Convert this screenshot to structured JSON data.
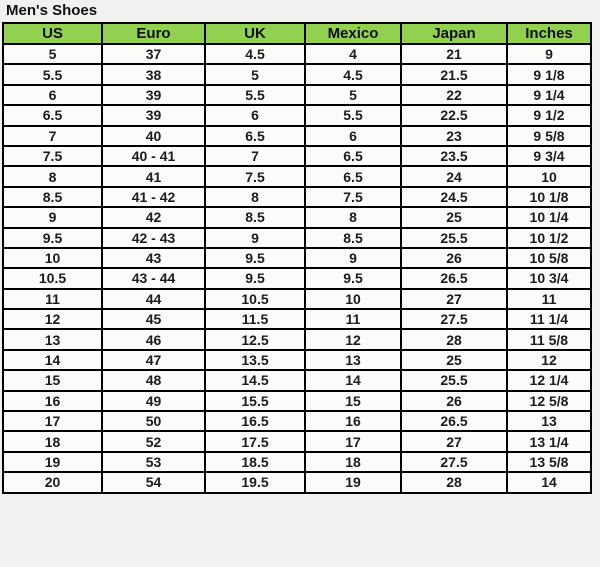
{
  "page": {
    "title": "Men's Shoes"
  },
  "colors": {
    "page_bg": "#f1f1ef",
    "cell_bg": "#fbfbfa",
    "header_bg": "#92d050",
    "border": "#000000",
    "text": "#1c1c1c"
  },
  "table": {
    "columns": [
      "US",
      "Euro",
      "UK",
      "Mexico",
      "Japan",
      "Inches"
    ],
    "rows": [
      [
        "5",
        "37",
        "4.5",
        "4",
        "21",
        "9"
      ],
      [
        "5.5",
        "38",
        "5",
        "4.5",
        "21.5",
        "9 1/8"
      ],
      [
        "6",
        "39",
        "5.5",
        "5",
        "22",
        "9 1/4"
      ],
      [
        "6.5",
        "39",
        "6",
        "5.5",
        "22.5",
        "9 1/2"
      ],
      [
        "7",
        "40",
        "6.5",
        "6",
        "23",
        "9 5/8"
      ],
      [
        "7.5",
        "40 - 41",
        "7",
        "6.5",
        "23.5",
        "9 3/4"
      ],
      [
        "8",
        "41",
        "7.5",
        "6.5",
        "24",
        "10"
      ],
      [
        "8.5",
        "41 - 42",
        "8",
        "7.5",
        "24.5",
        "10 1/8"
      ],
      [
        "9",
        "42",
        "8.5",
        "8",
        "25",
        "10 1/4"
      ],
      [
        "9.5",
        "42 - 43",
        "9",
        "8.5",
        "25.5",
        "10 1/2"
      ],
      [
        "10",
        "43",
        "9.5",
        "9",
        "26",
        "10 5/8"
      ],
      [
        "10.5",
        "43 - 44",
        "9.5",
        "9.5",
        "26.5",
        "10 3/4"
      ],
      [
        "11",
        "44",
        "10.5",
        "10",
        "27",
        "11"
      ],
      [
        "12",
        "45",
        "11.5",
        "11",
        "27.5",
        "11 1/4"
      ],
      [
        "13",
        "46",
        "12.5",
        "12",
        "28",
        "11 5/8"
      ],
      [
        "14",
        "47",
        "13.5",
        "13",
        "25",
        "12"
      ],
      [
        "15",
        "48",
        "14.5",
        "14",
        "25.5",
        "12 1/4"
      ],
      [
        "16",
        "49",
        "15.5",
        "15",
        "26",
        "12 5/8"
      ],
      [
        "17",
        "50",
        "16.5",
        "16",
        "26.5",
        "13"
      ],
      [
        "18",
        "52",
        "17.5",
        "17",
        "27",
        "13 1/4"
      ],
      [
        "19",
        "53",
        "18.5",
        "18",
        "27.5",
        "13 5/8"
      ],
      [
        "20",
        "54",
        "19.5",
        "19",
        "28",
        "14"
      ]
    ]
  }
}
